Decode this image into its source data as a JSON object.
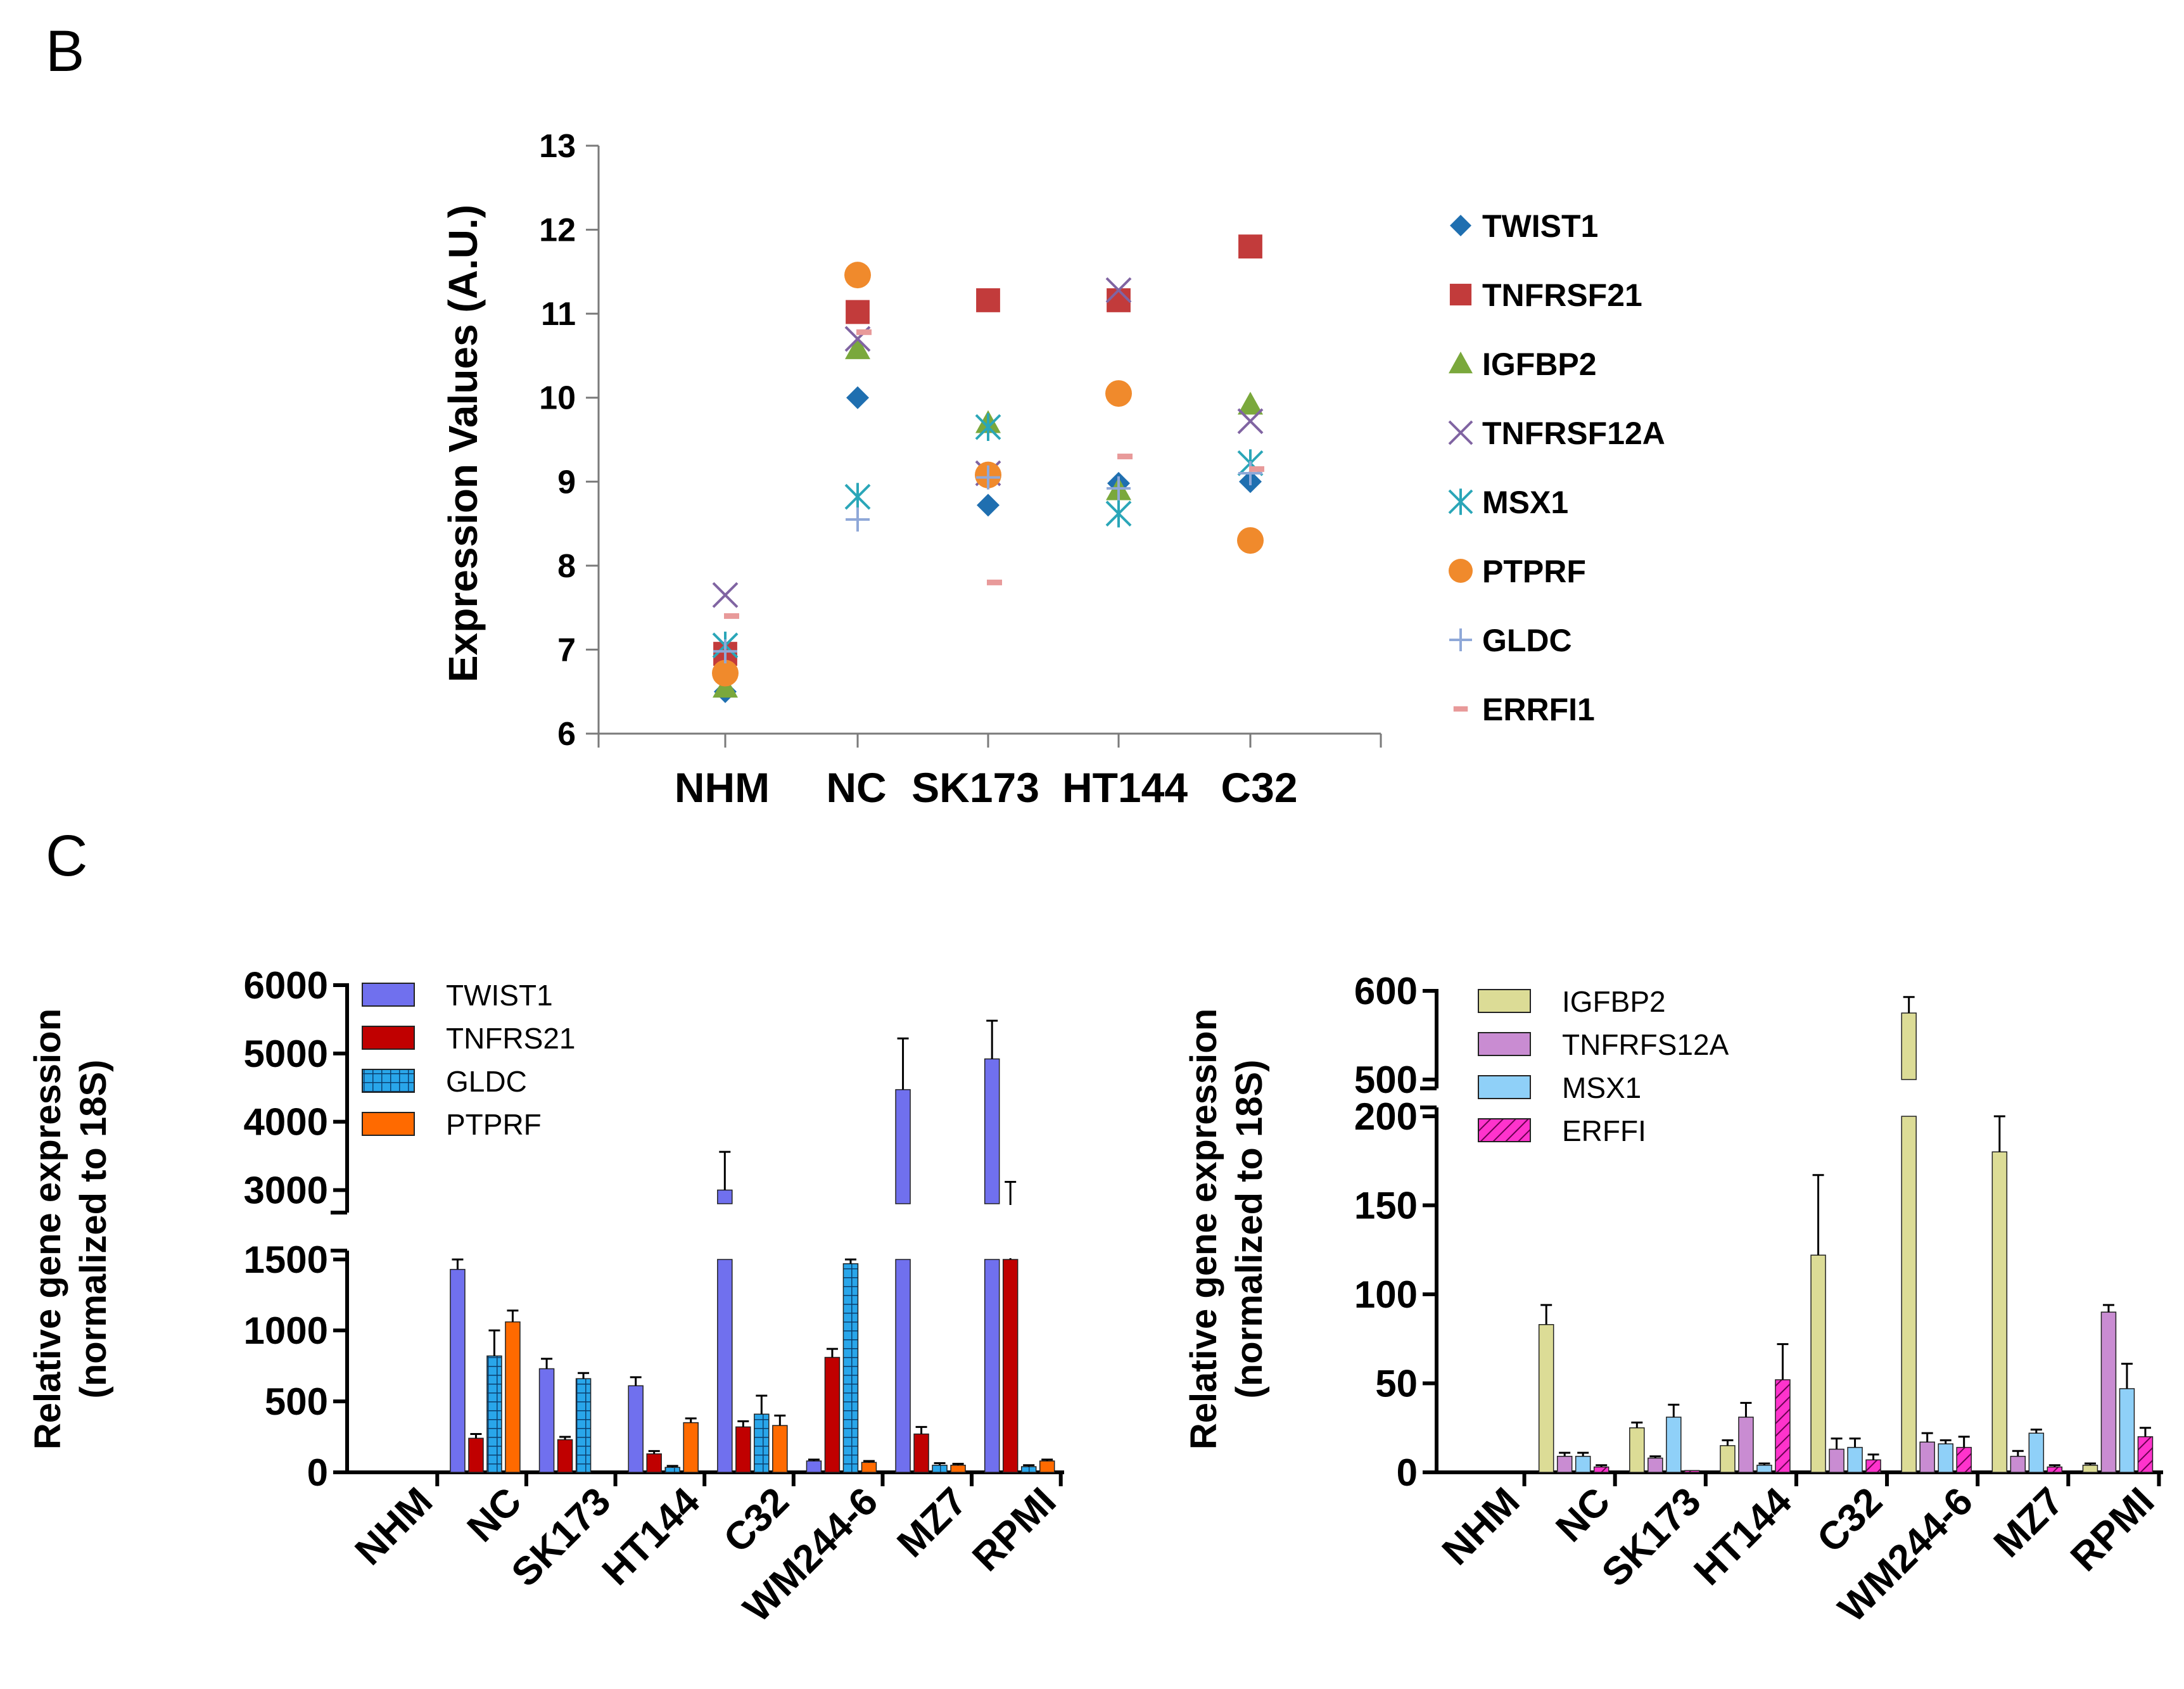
{
  "panel_labels": {
    "b": "B",
    "c": "C"
  },
  "colors": {
    "TWIST1": "#1f6fb0",
    "TNFRSF21": "#c23b3b",
    "IGFBP2": "#7aa83c",
    "TNFRSF12A": "#8064a2",
    "MSX1": "#2aa6b8",
    "PTPRF": "#f08a2c",
    "GLDC": "#8fa8d8",
    "ERRFI1": "#e89a9a",
    "bar_TWIST1": "#7070ee",
    "bar_TNFRS21": "#c00000",
    "bar_GLDC": "#29a6ea",
    "bar_PTPRF": "#ff6a00",
    "bar_IGFBP2": "#dcdc96",
    "bar_TNFRFS12A": "#c98cd2",
    "bar_MSX1": "#8fd0f8",
    "bar_ERFFI": "#ff33cc"
  },
  "chart_data": [
    {
      "id": "panel-b",
      "type": "scatter",
      "title": "",
      "ylabel": "Expression Values (A.U.)",
      "xlabel": "",
      "ylim": [
        6,
        13
      ],
      "yticks": [
        "6",
        "7",
        "8",
        "9",
        "10",
        "11",
        "12",
        "13"
      ],
      "categories": [
        "NHM",
        "NC",
        "SK173",
        "HT144",
        "C32"
      ],
      "legend_position": "right",
      "series": [
        {
          "name": "TWIST1",
          "marker": "diamond",
          "values": [
            6.5,
            10.0,
            8.72,
            8.98,
            9.0
          ]
        },
        {
          "name": "TNFRSF21",
          "marker": "square",
          "values": [
            6.95,
            11.02,
            11.16,
            11.16,
            11.8
          ]
        },
        {
          "name": "IGFBP2",
          "marker": "triangle",
          "values": [
            6.55,
            10.58,
            9.7,
            8.9,
            9.92
          ]
        },
        {
          "name": "TNFRSF12A",
          "marker": "x",
          "values": [
            7.65,
            10.7,
            9.1,
            11.28,
            9.72
          ]
        },
        {
          "name": "MSX1",
          "marker": "star",
          "values": [
            7.05,
            8.82,
            9.65,
            8.62,
            9.22
          ]
        },
        {
          "name": "PTPRF",
          "marker": "circle",
          "values": [
            6.72,
            11.46,
            9.08,
            10.05,
            8.3
          ]
        },
        {
          "name": "GLDC",
          "marker": "plus",
          "values": [
            6.98,
            8.55,
            9.05,
            8.92,
            9.1
          ]
        },
        {
          "name": "ERRFI1",
          "marker": "dash",
          "values": [
            7.4,
            10.78,
            7.8,
            9.3,
            9.15
          ]
        }
      ]
    },
    {
      "id": "panel-c-left",
      "type": "bar",
      "ylabel": "Relative gene expression (normalized to 18S)",
      "ylabel_lines": [
        "Relative gene expression",
        "(normalized to 18S)"
      ],
      "axis_break": {
        "lower": [
          0,
          1500
        ],
        "upper": [
          2800,
          6000
        ]
      },
      "yticks_lower": [
        "0",
        "500",
        "1000",
        "1500"
      ],
      "yticks_upper": [
        "3000",
        "4000",
        "5000",
        "6000"
      ],
      "categories": [
        "NHM",
        "NC",
        "SK173",
        "HT144",
        "C32",
        "WM244-6",
        "MZ7",
        "RPMI"
      ],
      "legend_position": "top-left",
      "series": [
        {
          "name": "TWIST1",
          "pattern": "solid",
          "values": [
            0,
            1430,
            730,
            610,
            3000,
            80,
            4470,
            4920
          ],
          "errors": [
            0,
            120,
            70,
            60,
            560,
            10,
            750,
            560
          ]
        },
        {
          "name": "TNFRS21",
          "pattern": "solid",
          "values": [
            0,
            240,
            230,
            130,
            320,
            810,
            270,
            2600
          ],
          "errors": [
            0,
            30,
            20,
            20,
            40,
            60,
            50,
            520
          ]
        },
        {
          "name": "GLDC",
          "pattern": "grid",
          "values": [
            0,
            820,
            660,
            35,
            410,
            1470,
            50,
            40
          ],
          "errors": [
            0,
            180,
            40,
            10,
            130,
            130,
            15,
            10
          ]
        },
        {
          "name": "PTPRF",
          "pattern": "solid",
          "values": [
            0,
            1060,
            0,
            350,
            330,
            70,
            50,
            80
          ],
          "errors": [
            0,
            80,
            0,
            30,
            70,
            10,
            10,
            10
          ]
        }
      ]
    },
    {
      "id": "panel-c-right",
      "type": "bar",
      "ylabel": "Relative gene expression (normalized to 18S)",
      "ylabel_lines": [
        "Relative gene expression",
        "(normalized to 18S)"
      ],
      "axis_break": {
        "lower": [
          0,
          200
        ],
        "upper": [
          500,
          600
        ]
      },
      "yticks_lower": [
        "0",
        "50",
        "100",
        "150",
        "200"
      ],
      "yticks_upper": [
        "500",
        "600"
      ],
      "categories": [
        "NHM",
        "NC",
        "SK173",
        "HT144",
        "C32",
        "WM244-6",
        "MZ7",
        "RPMI"
      ],
      "legend_position": "top-left",
      "series": [
        {
          "name": "IGFBP2",
          "pattern": "solid",
          "values": [
            0,
            83,
            25,
            15,
            122,
            575,
            180,
            4
          ],
          "errors": [
            0,
            11,
            3,
            3,
            45,
            18,
            20,
            1
          ]
        },
        {
          "name": "TNFRFS12A",
          "pattern": "solid",
          "values": [
            0,
            9,
            8,
            31,
            13,
            17,
            9,
            90
          ],
          "errors": [
            0,
            2,
            1,
            8,
            6,
            5,
            3,
            4
          ]
        },
        {
          "name": "MSX1",
          "pattern": "solid",
          "values": [
            0,
            9,
            31,
            4,
            14,
            16,
            22,
            47
          ],
          "errors": [
            0,
            2,
            7,
            1,
            5,
            2,
            2,
            14
          ]
        },
        {
          "name": "ERFFI",
          "pattern": "hatch",
          "values": [
            0,
            3,
            1,
            52,
            7,
            14,
            3,
            20
          ],
          "errors": [
            0,
            1,
            0,
            20,
            3,
            6,
            1,
            5
          ]
        }
      ]
    }
  ]
}
